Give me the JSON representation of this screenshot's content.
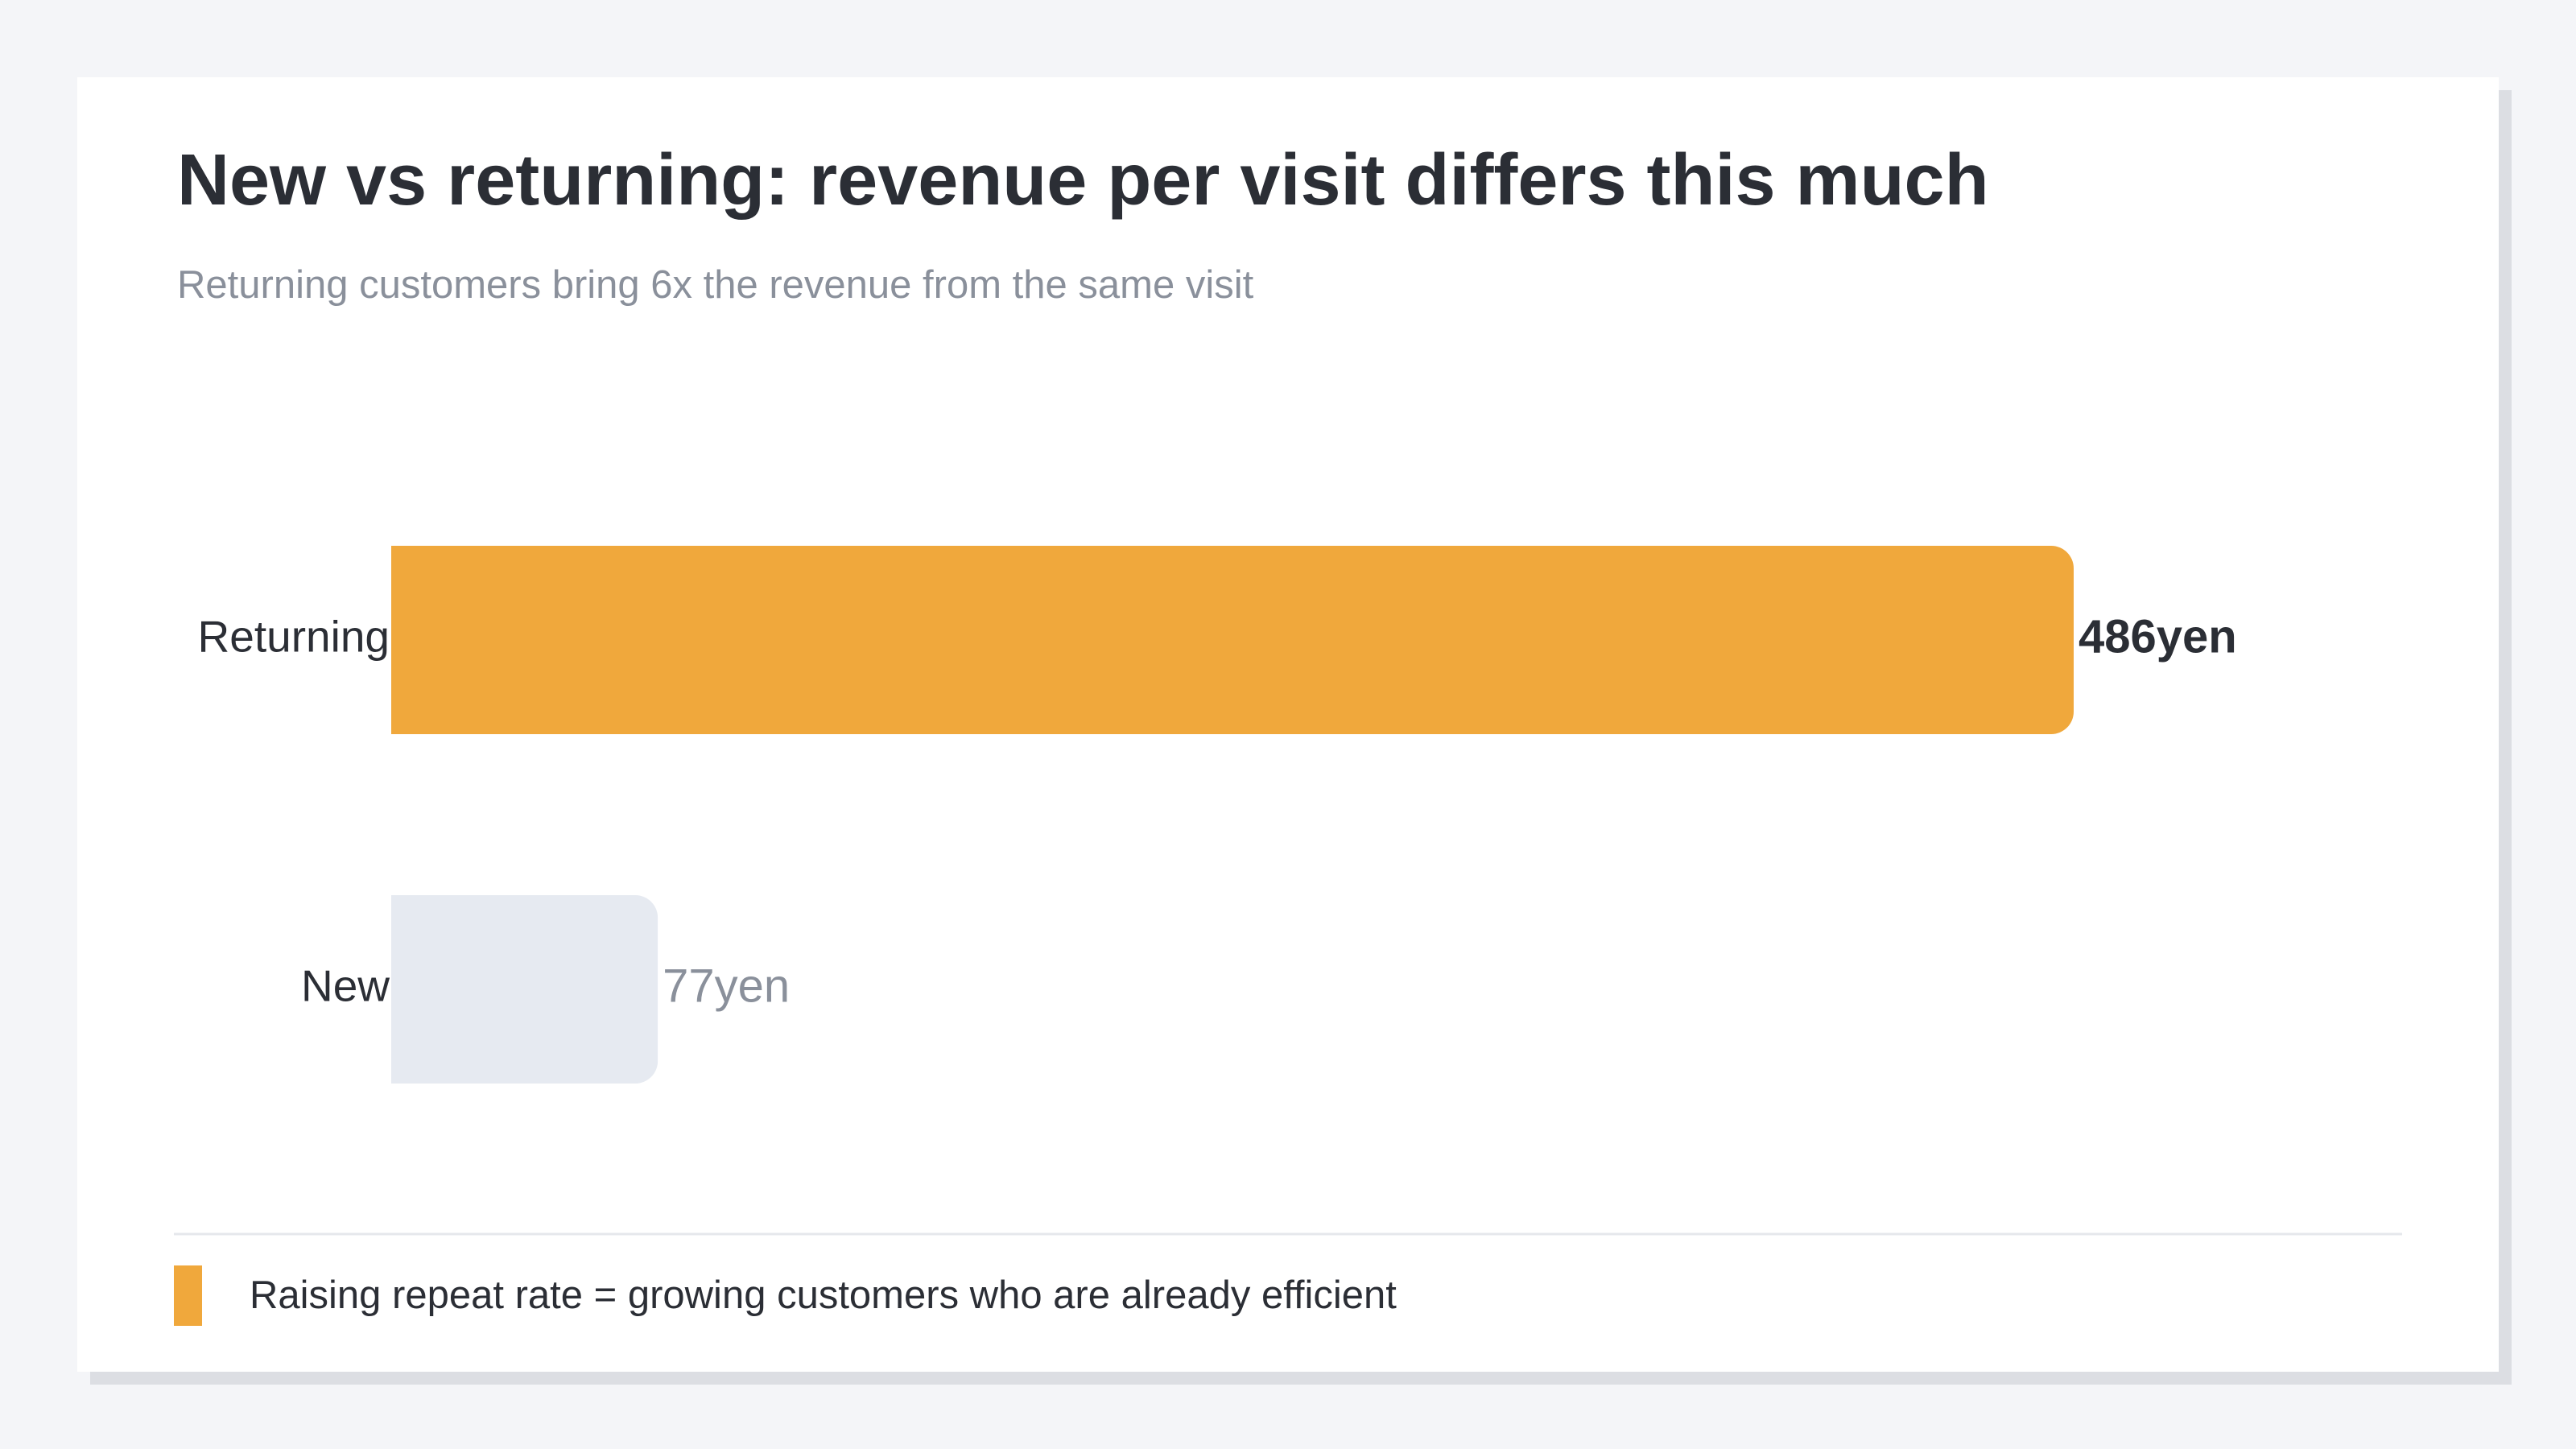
{
  "chart_data": {
    "type": "bar",
    "orientation": "horizontal",
    "title": "New vs returning: revenue per visit differs this much",
    "subtitle": "Returning customers bring 6x the revenue from the same visit",
    "categories": [
      "Returning",
      "New"
    ],
    "values": [
      486,
      77
    ],
    "value_labels": [
      "486yen",
      "77yen"
    ],
    "colors": [
      "#f0a83c",
      "#e6eaf1"
    ],
    "note": "Raising repeat rate = growing customers who are already efficient"
  }
}
